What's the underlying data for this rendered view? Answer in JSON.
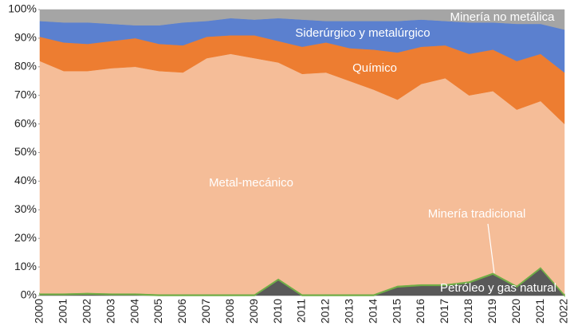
{
  "chart_data": {
    "type": "stacked_area",
    "categories": [
      "2000",
      "2001",
      "2002",
      "2003",
      "2004",
      "2005",
      "2006",
      "2007",
      "2008",
      "2009",
      "2010",
      "2011",
      "2012",
      "2013",
      "2014",
      "2015",
      "2016",
      "2017",
      "2018",
      "2019",
      "2020",
      "2021",
      "2022"
    ],
    "series": [
      {
        "name": "Petróleo y gas natural",
        "color": "#595959",
        "values": [
          0.3,
          0.3,
          0.5,
          0.3,
          0.3,
          0,
          0,
          0,
          0,
          0,
          5.5,
          0,
          0,
          0,
          0,
          3,
          3.5,
          3.5,
          4.5,
          7.5,
          3,
          9.5,
          0
        ]
      },
      {
        "name": "Minería tradicional",
        "color": "#70ad47",
        "values": [
          0.5,
          0.5,
          0.5,
          0.5,
          0.5,
          0.5,
          0.5,
          0.5,
          0.5,
          0.5,
          0.5,
          0.5,
          0.5,
          0.5,
          0.5,
          0.5,
          0.5,
          0.5,
          0.5,
          0.5,
          0.5,
          0.5,
          0.5
        ]
      },
      {
        "name": "Metal-mecánico",
        "color": "#f5bd98",
        "values": [
          81.2,
          77.7,
          77.5,
          78.7,
          79.2,
          78,
          77.5,
          82.5,
          84,
          82.5,
          75.5,
          77,
          77.5,
          74.5,
          71.5,
          65,
          70,
          72,
          65,
          63.5,
          61.5,
          58,
          59.5
        ]
      },
      {
        "name": "Químico",
        "color": "#ed7d31",
        "values": [
          8.5,
          10,
          9.5,
          9.5,
          10,
          9.5,
          9.5,
          7.5,
          6.5,
          8,
          7.5,
          9.5,
          10.5,
          11.5,
          14,
          16.5,
          13,
          11.5,
          14.5,
          14.5,
          17,
          16.5,
          18
        ]
      },
      {
        "name": "Siderúrgico y metalúrgico",
        "color": "#5b80cf",
        "values": [
          5.5,
          7,
          7.5,
          6,
          4.5,
          6.5,
          8,
          5.5,
          6,
          5.5,
          8,
          9.5,
          7.5,
          9.5,
          10,
          11,
          9.5,
          8.5,
          11,
          9.5,
          13,
          10.5,
          15
        ]
      },
      {
        "name": "Minería no metálica",
        "color": "#a5a5a5",
        "values": [
          4,
          4.5,
          4.5,
          5,
          5.5,
          5.5,
          4.5,
          4,
          3,
          3.5,
          3,
          3.5,
          4,
          4,
          4,
          4,
          3.5,
          4,
          4.5,
          4.5,
          5,
          5,
          7
        ]
      }
    ],
    "ylim": [
      0,
      100
    ],
    "yticks": [
      {
        "value": 0,
        "label": "0%"
      },
      {
        "value": 10,
        "label": "10%"
      },
      {
        "value": 20,
        "label": "20%"
      },
      {
        "value": 30,
        "label": "30%"
      },
      {
        "value": 40,
        "label": "40%"
      },
      {
        "value": 50,
        "label": "50%"
      },
      {
        "value": 60,
        "label": "60%"
      },
      {
        "value": 70,
        "label": "70%"
      },
      {
        "value": 80,
        "label": "80%"
      },
      {
        "value": 90,
        "label": "90%"
      },
      {
        "value": 100,
        "label": "100%"
      }
    ],
    "grid": false
  }
}
